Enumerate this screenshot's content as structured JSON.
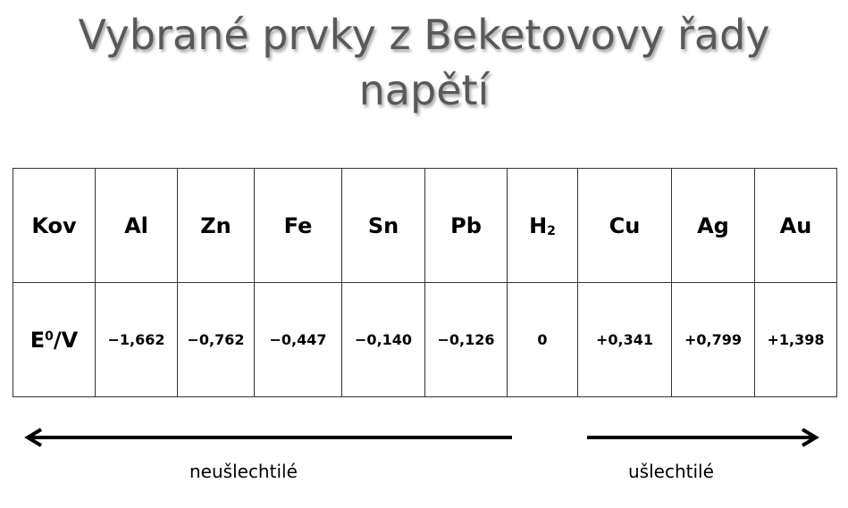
{
  "title": {
    "line1": "Vybrané prvky z Beketovovy řady",
    "line2": "napětí"
  },
  "table": {
    "header_label": "Kov",
    "metals": [
      "Al",
      "Zn",
      "Fe",
      "Sn",
      "Pb",
      "H",
      "Cu",
      "Ag",
      "Au"
    ],
    "h2_subscript": "2",
    "potential_label": {
      "E": "E",
      "sup": "0",
      "unit": "/V"
    },
    "values": [
      "−1,662",
      "−0,762",
      "−0,447",
      "−0,140",
      "−0,126",
      "0",
      "+0,341",
      "+0,799",
      "+1,398"
    ]
  },
  "arrows": {
    "left_label": "neušlechtilé",
    "right_label": "ušlechtilé"
  }
}
